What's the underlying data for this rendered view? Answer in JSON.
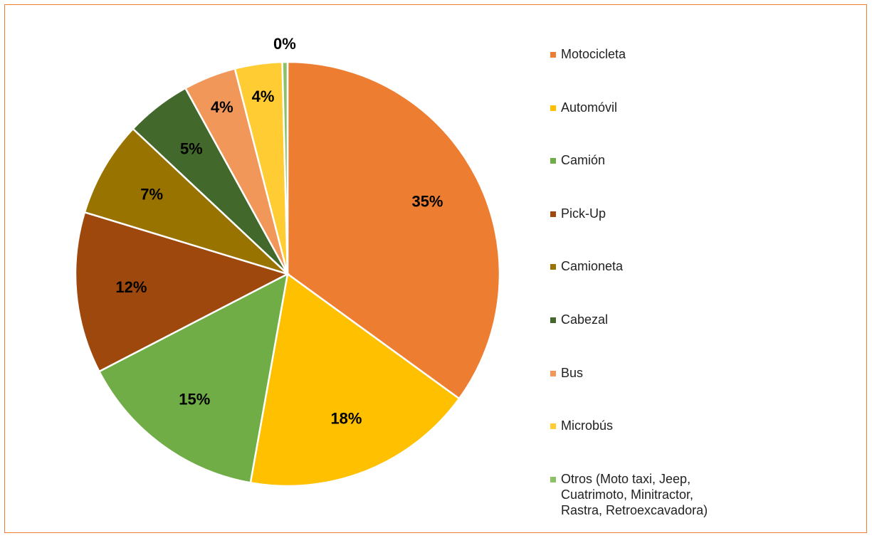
{
  "chart_data": {
    "type": "pie",
    "categories": [
      "Motocicleta",
      "Automóvil",
      "Camión",
      "Pick-Up",
      "Camioneta",
      "Cabezal",
      "Bus",
      "Microbús",
      "Otros (Moto taxi, Jeep, Cuatrimoto, Minitractor, Rastra, Retroexcavadora)"
    ],
    "values": [
      35,
      17.8,
      14.6,
      12.3,
      7.3,
      5,
      4,
      3.6,
      0.4
    ],
    "value_labels": [
      "35%",
      "18%",
      "15%",
      "12%",
      "7%",
      "5%",
      "4%",
      "4%",
      "0%"
    ],
    "colors": [
      "#ED7D31",
      "#FFC000",
      "#70AD47",
      "#9E480E",
      "#997300",
      "#43682B",
      "#F1975A",
      "#FFCD33",
      "#8CC168"
    ],
    "legend": "right"
  }
}
